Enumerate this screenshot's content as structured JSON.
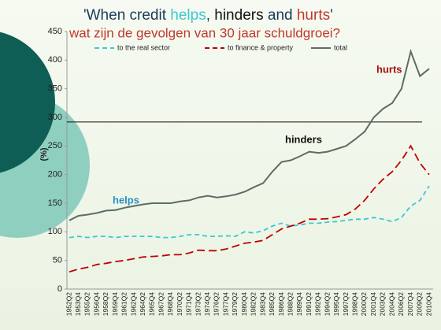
{
  "chart_data": {
    "type": "line",
    "title": [
      "'When credit ",
      "helps",
      ", ",
      "hinders",
      " and ",
      "hurts",
      "'"
    ],
    "subtitle": "wat zijn de gevolgen van 30 jaar schuldgroei?",
    "y_label": "(%)",
    "categories": [
      "1952Q2",
      "1953Q4",
      "1955Q2",
      "1956Q4",
      "1958Q2",
      "1959Q4",
      "1961Q2",
      "1962Q4",
      "1964Q2",
      "1965Q4",
      "1967Q2",
      "1968Q4",
      "1970Q2",
      "1971Q4",
      "1973Q2",
      "1974Q4",
      "1976Q2",
      "1977Q4",
      "1979Q2",
      "1980Q4",
      "1982Q2",
      "1983Q4",
      "1985Q2",
      "1986Q4",
      "1988Q2",
      "1989Q4",
      "1991Q2",
      "1992Q4",
      "1994Q2",
      "1995Q4",
      "1997Q2",
      "1998Q4",
      "2000Q2",
      "2001Q4",
      "2003Q2",
      "2004Q4",
      "2006Q2",
      "2007Q4",
      "2009Q2",
      "2010Q4"
    ],
    "series": [
      {
        "name": "to the real sector",
        "color": "#3cc8d0",
        "dashed": true,
        "values": [
          90,
          92,
          90,
          92,
          92,
          90,
          92,
          92,
          92,
          92,
          90,
          90,
          92,
          95,
          95,
          92,
          92,
          93,
          92,
          100,
          98,
          102,
          110,
          115,
          110,
          112,
          115,
          115,
          117,
          118,
          120,
          122,
          122,
          125,
          122,
          118,
          125,
          145,
          155,
          180
        ]
      },
      {
        "name": "to finance & property",
        "color": "#c00000",
        "dashed": true,
        "values": [
          30,
          35,
          38,
          43,
          45,
          48,
          50,
          53,
          56,
          57,
          58,
          60,
          60,
          63,
          68,
          67,
          67,
          70,
          75,
          80,
          82,
          85,
          95,
          105,
          110,
          115,
          122,
          122,
          123,
          126,
          130,
          140,
          155,
          175,
          192,
          205,
          225,
          250,
          220,
          200
        ]
      },
      {
        "name": "total",
        "color": "#5f6b66",
        "dashed": false,
        "values": [
          120,
          128,
          130,
          133,
          137,
          138,
          142,
          145,
          148,
          150,
          150,
          150,
          153,
          155,
          160,
          163,
          160,
          162,
          165,
          170,
          178,
          185,
          205,
          222,
          225,
          232,
          240,
          238,
          240,
          245,
          250,
          262,
          275,
          300,
          315,
          325,
          350,
          415,
          372,
          385
        ]
      }
    ],
    "annotations": [
      "helps",
      "hinders",
      "hurts"
    ],
    "hline": 292,
    "ylim": [
      0,
      450
    ],
    "yticks": [
      0,
      50,
      100,
      150,
      200,
      250,
      300,
      350,
      400,
      450
    ]
  }
}
